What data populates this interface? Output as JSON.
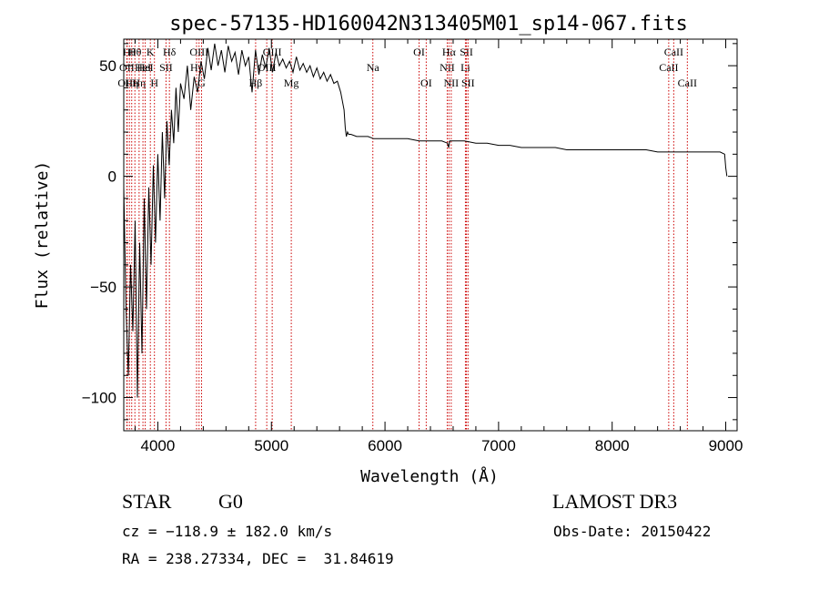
{
  "chart_data": {
    "type": "line",
    "title": "spec-57135-HD160042N313405M01_sp14-067.fits",
    "xlabel": "Wavelength (Å)",
    "ylabel": "Flux (relative)",
    "xlim": [
      3700,
      9100
    ],
    "ylim": [
      -115,
      62
    ],
    "xticks": [
      4000,
      5000,
      6000,
      7000,
      8000,
      9000
    ],
    "xtick_labels": [
      "4000",
      "5000",
      "6000",
      "7000",
      "8000",
      "9000"
    ],
    "yticks": [
      -100,
      -50,
      0,
      50
    ],
    "ytick_labels": [
      "−100",
      "−50",
      "0",
      "50"
    ],
    "line_color": "#000000",
    "marker_color": "#cc0000",
    "series": [
      {
        "x": [
          3700,
          3720,
          3740,
          3760,
          3780,
          3800,
          3820,
          3840,
          3860,
          3880,
          3900,
          3920,
          3940,
          3960,
          3980,
          4000,
          4020,
          4040,
          4060,
          4080,
          4100,
          4120,
          4140,
          4160,
          4180,
          4200,
          4230,
          4260,
          4290,
          4320,
          4350,
          4380,
          4410,
          4440,
          4470,
          4500,
          4530,
          4560,
          4590,
          4620,
          4650,
          4680,
          4710,
          4740,
          4770,
          4800,
          4830,
          4860,
          4890,
          4920,
          4950,
          4980,
          5010,
          5040,
          5070,
          5100,
          5130,
          5160,
          5190,
          5220,
          5250,
          5280,
          5310,
          5340,
          5370,
          5400,
          5430,
          5460,
          5490,
          5520,
          5550,
          5580,
          5610,
          5640,
          5650,
          5660,
          5670,
          5680,
          5700,
          5750,
          5800,
          5850,
          5900,
          6000,
          6100,
          6200,
          6300,
          6400,
          6500,
          6550,
          6560,
          6570,
          6600,
          6700,
          6800,
          6900,
          7000,
          7100,
          7200,
          7300,
          7400,
          7500,
          7600,
          7700,
          7800,
          7900,
          8000,
          8100,
          8200,
          8300,
          8400,
          8500,
          8600,
          8700,
          8800,
          8900,
          8950,
          8990,
          9000,
          9010
        ],
        "y": [
          -5,
          -60,
          -90,
          -40,
          -70,
          -20,
          -100,
          -30,
          -80,
          -10,
          -60,
          -5,
          -40,
          5,
          -30,
          10,
          -20,
          20,
          -10,
          25,
          5,
          30,
          15,
          40,
          20,
          42,
          35,
          50,
          30,
          45,
          38,
          52,
          44,
          58,
          48,
          60,
          50,
          57,
          47,
          59,
          52,
          56,
          46,
          57,
          50,
          54,
          38,
          57,
          46,
          55,
          49,
          58,
          47,
          56,
          50,
          53,
          49,
          52,
          47,
          54,
          48,
          51,
          47,
          50,
          45,
          49,
          44,
          47,
          43,
          46,
          42,
          43,
          38,
          30,
          22,
          18,
          20,
          19,
          19,
          18,
          18,
          18,
          17,
          17,
          17,
          17,
          16,
          16,
          16,
          15,
          13,
          16,
          16,
          16,
          15,
          15,
          14,
          14,
          13,
          13,
          13,
          13,
          12,
          12,
          12,
          12,
          12,
          12,
          12,
          12,
          11,
          11,
          11,
          11,
          11,
          11,
          11,
          10,
          4,
          0
        ]
      }
    ],
    "line_markers": [
      {
        "x": 3750,
        "label": "Hθ",
        "row": 1
      },
      {
        "x": 3727,
        "label": "OII",
        "row": 2
      },
      {
        "x": 3730,
        "label": "OIII",
        "row": 3
      },
      {
        "x": 3770,
        "label": "Hη",
        "row": 3
      },
      {
        "x": 3798,
        "label": "Hθ",
        "row": 1
      },
      {
        "x": 3835,
        "label": "Hη",
        "row": 3
      },
      {
        "x": 3869,
        "label": "HeI",
        "row": 2
      },
      {
        "x": 3889,
        "label": "HeI",
        "row": 2
      },
      {
        "x": 3934,
        "label": "K",
        "row": 1
      },
      {
        "x": 3970,
        "label": "H",
        "row": 3
      },
      {
        "x": 4072,
        "label": "SII",
        "row": 2
      },
      {
        "x": 4102,
        "label": "Hδ",
        "row": 1
      },
      {
        "x": 4341,
        "label": "Hγ",
        "row": 2
      },
      {
        "x": 4363,
        "label": "OIII",
        "row": 1
      },
      {
        "x": 4385,
        "label": "G",
        "row": 3
      },
      {
        "x": 4861,
        "label": "Hβ",
        "row": 3
      },
      {
        "x": 4959,
        "label": "OIII",
        "row": 2
      },
      {
        "x": 5007,
        "label": "OIII",
        "row": 1
      },
      {
        "x": 5175,
        "label": "Mg",
        "row": 3
      },
      {
        "x": 5893,
        "label": "Na",
        "row": 2
      },
      {
        "x": 6300,
        "label": "OI",
        "row": 1
      },
      {
        "x": 6363,
        "label": "OI",
        "row": 3
      },
      {
        "x": 6548,
        "label": "NII",
        "row": 2
      },
      {
        "x": 6563,
        "label": "Hα",
        "row": 1
      },
      {
        "x": 6583,
        "label": "NII",
        "row": 3
      },
      {
        "x": 6708,
        "label": "Li",
        "row": 2
      },
      {
        "x": 6717,
        "label": "SII",
        "row": 1
      },
      {
        "x": 6731,
        "label": "SII",
        "row": 3
      },
      {
        "x": 8498,
        "label": "CaII",
        "row": 2
      },
      {
        "x": 8542,
        "label": "CaII",
        "row": 1
      },
      {
        "x": 8662,
        "label": "CaII",
        "row": 3
      }
    ]
  },
  "info": {
    "object_class": "STAR",
    "subclass": "G0",
    "survey": "LAMOST DR3",
    "cz": "cz = −118.9 ± 182.0 km/s",
    "obs_date": "Obs-Date: 20150422",
    "radec": "RA = 238.27334, DEC =  31.84619"
  }
}
